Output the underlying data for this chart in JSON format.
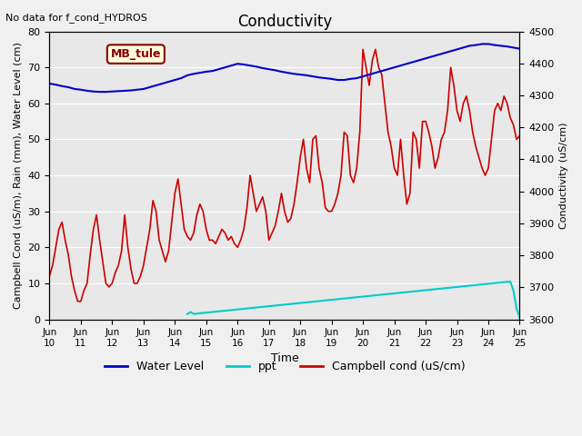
{
  "title": "Conductivity",
  "top_left_text": "No data for f_cond_HYDROS",
  "annotation_box": "MB_tule",
  "xlabel": "Time",
  "ylabel_left": "Campbell Cond (uS/m), Rain (mm), Water Level (cm)",
  "ylabel_right": "Conductivity (uS/cm)",
  "xlim_days": [
    0,
    15
  ],
  "ylim_left": [
    0,
    80
  ],
  "ylim_right": [
    3600,
    4500
  ],
  "x_tick_labels": [
    "Jun\n10",
    "Jun\n11",
    "Jun\n12",
    "Jun\n13",
    "Jun\n14",
    "Jun\n15",
    "Jun\n16",
    "Jun\n17",
    "Jun\n18",
    "Jun\n19",
    "Jun\n20",
    "Jun\n21",
    "Jun\n22",
    "Jun\n23",
    "Jun\n24",
    "Jun\n25"
  ],
  "background_color": "#e8e8e8",
  "legend_entries": [
    "Water Level",
    "ppt",
    "Campbell cond (uS/cm)"
  ],
  "legend_colors": [
    "#0000cc",
    "#00cccc",
    "#cc0000"
  ],
  "legend_linestyles": [
    "-",
    "-",
    "-"
  ],
  "water_level_x": [
    0,
    0.2,
    0.4,
    0.6,
    0.8,
    1.0,
    1.2,
    1.4,
    1.6,
    1.8,
    2.0,
    2.2,
    2.4,
    2.6,
    2.8,
    3.0,
    3.2,
    3.4,
    3.6,
    3.8,
    4.0,
    4.2,
    4.4,
    4.6,
    4.8,
    5.0,
    5.2,
    5.4,
    5.6,
    5.8,
    6.0,
    6.2,
    6.4,
    6.6,
    6.8,
    7.0,
    7.2,
    7.4,
    7.6,
    7.8,
    8.0,
    8.2,
    8.4,
    8.6,
    8.8,
    9.0,
    9.2,
    9.4,
    9.6,
    9.8,
    10.0,
    10.2,
    10.4,
    10.6,
    10.8,
    11.0,
    11.2,
    11.4,
    11.6,
    11.8,
    12.0,
    12.2,
    12.4,
    12.6,
    12.8,
    13.0,
    13.2,
    13.4,
    13.6,
    13.8,
    14.0,
    14.2,
    14.4,
    14.6,
    14.8,
    15.0
  ],
  "water_level_y": [
    65.5,
    65.2,
    64.8,
    64.5,
    64.0,
    63.8,
    63.5,
    63.3,
    63.2,
    63.2,
    63.3,
    63.4,
    63.5,
    63.6,
    63.8,
    64.0,
    64.5,
    65.0,
    65.5,
    66.0,
    66.5,
    67.0,
    67.8,
    68.2,
    68.5,
    68.8,
    69.0,
    69.5,
    70.0,
    70.5,
    71.0,
    70.8,
    70.5,
    70.2,
    69.8,
    69.5,
    69.2,
    68.8,
    68.5,
    68.2,
    68.0,
    67.8,
    67.5,
    67.2,
    67.0,
    66.8,
    66.5,
    66.5,
    66.8,
    67.0,
    67.5,
    68.0,
    68.5,
    69.0,
    69.5,
    70.0,
    70.5,
    71.0,
    71.5,
    72.0,
    72.5,
    73.0,
    73.5,
    74.0,
    74.5,
    75.0,
    75.5,
    76.0,
    76.2,
    76.5,
    76.5,
    76.2,
    76.0,
    75.8,
    75.5,
    75.2
  ],
  "campbell_x": [
    0,
    0.1,
    0.2,
    0.3,
    0.4,
    0.5,
    0.6,
    0.7,
    0.8,
    0.9,
    1.0,
    1.1,
    1.2,
    1.3,
    1.4,
    1.5,
    1.6,
    1.7,
    1.8,
    1.9,
    2.0,
    2.1,
    2.2,
    2.3,
    2.4,
    2.5,
    2.6,
    2.7,
    2.8,
    2.9,
    3.0,
    3.1,
    3.2,
    3.3,
    3.4,
    3.5,
    3.6,
    3.7,
    3.8,
    3.9,
    4.0,
    4.1,
    4.2,
    4.3,
    4.4,
    4.5,
    4.6,
    4.7,
    4.8,
    4.9,
    5.0,
    5.1,
    5.2,
    5.3,
    5.4,
    5.5,
    5.6,
    5.7,
    5.8,
    5.9,
    6.0,
    6.1,
    6.2,
    6.3,
    6.4,
    6.5,
    6.6,
    6.7,
    6.8,
    6.9,
    7.0,
    7.1,
    7.2,
    7.3,
    7.4,
    7.5,
    7.6,
    7.7,
    7.8,
    7.9,
    8.0,
    8.1,
    8.2,
    8.3,
    8.4,
    8.5,
    8.6,
    8.7,
    8.8,
    8.9,
    9.0,
    9.1,
    9.2,
    9.3,
    9.4,
    9.5,
    9.6,
    9.7,
    9.8,
    9.9,
    10.0,
    10.1,
    10.2,
    10.3,
    10.4,
    10.5,
    10.6,
    10.7,
    10.8,
    10.9,
    11.0,
    11.1,
    11.2,
    11.3,
    11.4,
    11.5,
    11.6,
    11.7,
    11.8,
    11.9,
    12.0,
    12.1,
    12.2,
    12.3,
    12.4,
    12.5,
    12.6,
    12.7,
    12.8,
    12.9,
    13.0,
    13.1,
    13.2,
    13.3,
    13.4,
    13.5,
    13.6,
    13.7,
    13.8,
    13.9,
    14.0,
    14.1,
    14.2,
    14.3,
    14.4,
    14.5,
    14.6,
    14.7,
    14.8,
    14.9,
    15.0
  ],
  "campbell_y": [
    12,
    15,
    20,
    25,
    27,
    22,
    18,
    12,
    8,
    5,
    5,
    8,
    10,
    18,
    25,
    29,
    22,
    16,
    10,
    9,
    10,
    13,
    15,
    19,
    29,
    20,
    14,
    10,
    10,
    12,
    15,
    20,
    25,
    33,
    30,
    22,
    19,
    16,
    19,
    27,
    35,
    39,
    32,
    25,
    23,
    22,
    24,
    29,
    32,
    30,
    25,
    22,
    22,
    21,
    23,
    25,
    24,
    22,
    23,
    21,
    20,
    22,
    25,
    31,
    40,
    35,
    30,
    32,
    34,
    30,
    22,
    24,
    26,
    30,
    35,
    30,
    27,
    28,
    32,
    38,
    45,
    50,
    42,
    38,
    50,
    51,
    42,
    38,
    31,
    30,
    30,
    32,
    35,
    40,
    52,
    51,
    40,
    38,
    42,
    52,
    75,
    70,
    65,
    72,
    75,
    70,
    68,
    60,
    52,
    48,
    42,
    40,
    50,
    40,
    32,
    35,
    52,
    50,
    42,
    55,
    55,
    52,
    48,
    42,
    45,
    50,
    52,
    58,
    70,
    65,
    58,
    55,
    60,
    62,
    58,
    52,
    48,
    45,
    42,
    40,
    42,
    50,
    58,
    60,
    58,
    62,
    60,
    56,
    54,
    50,
    51
  ],
  "ppt_x": [
    4.4,
    4.5,
    4.6,
    14.7,
    14.8,
    14.9,
    15.0
  ],
  "ppt_y": [
    1.5,
    2.0,
    1.5,
    10.5,
    8.0,
    3.0,
    0.5
  ]
}
